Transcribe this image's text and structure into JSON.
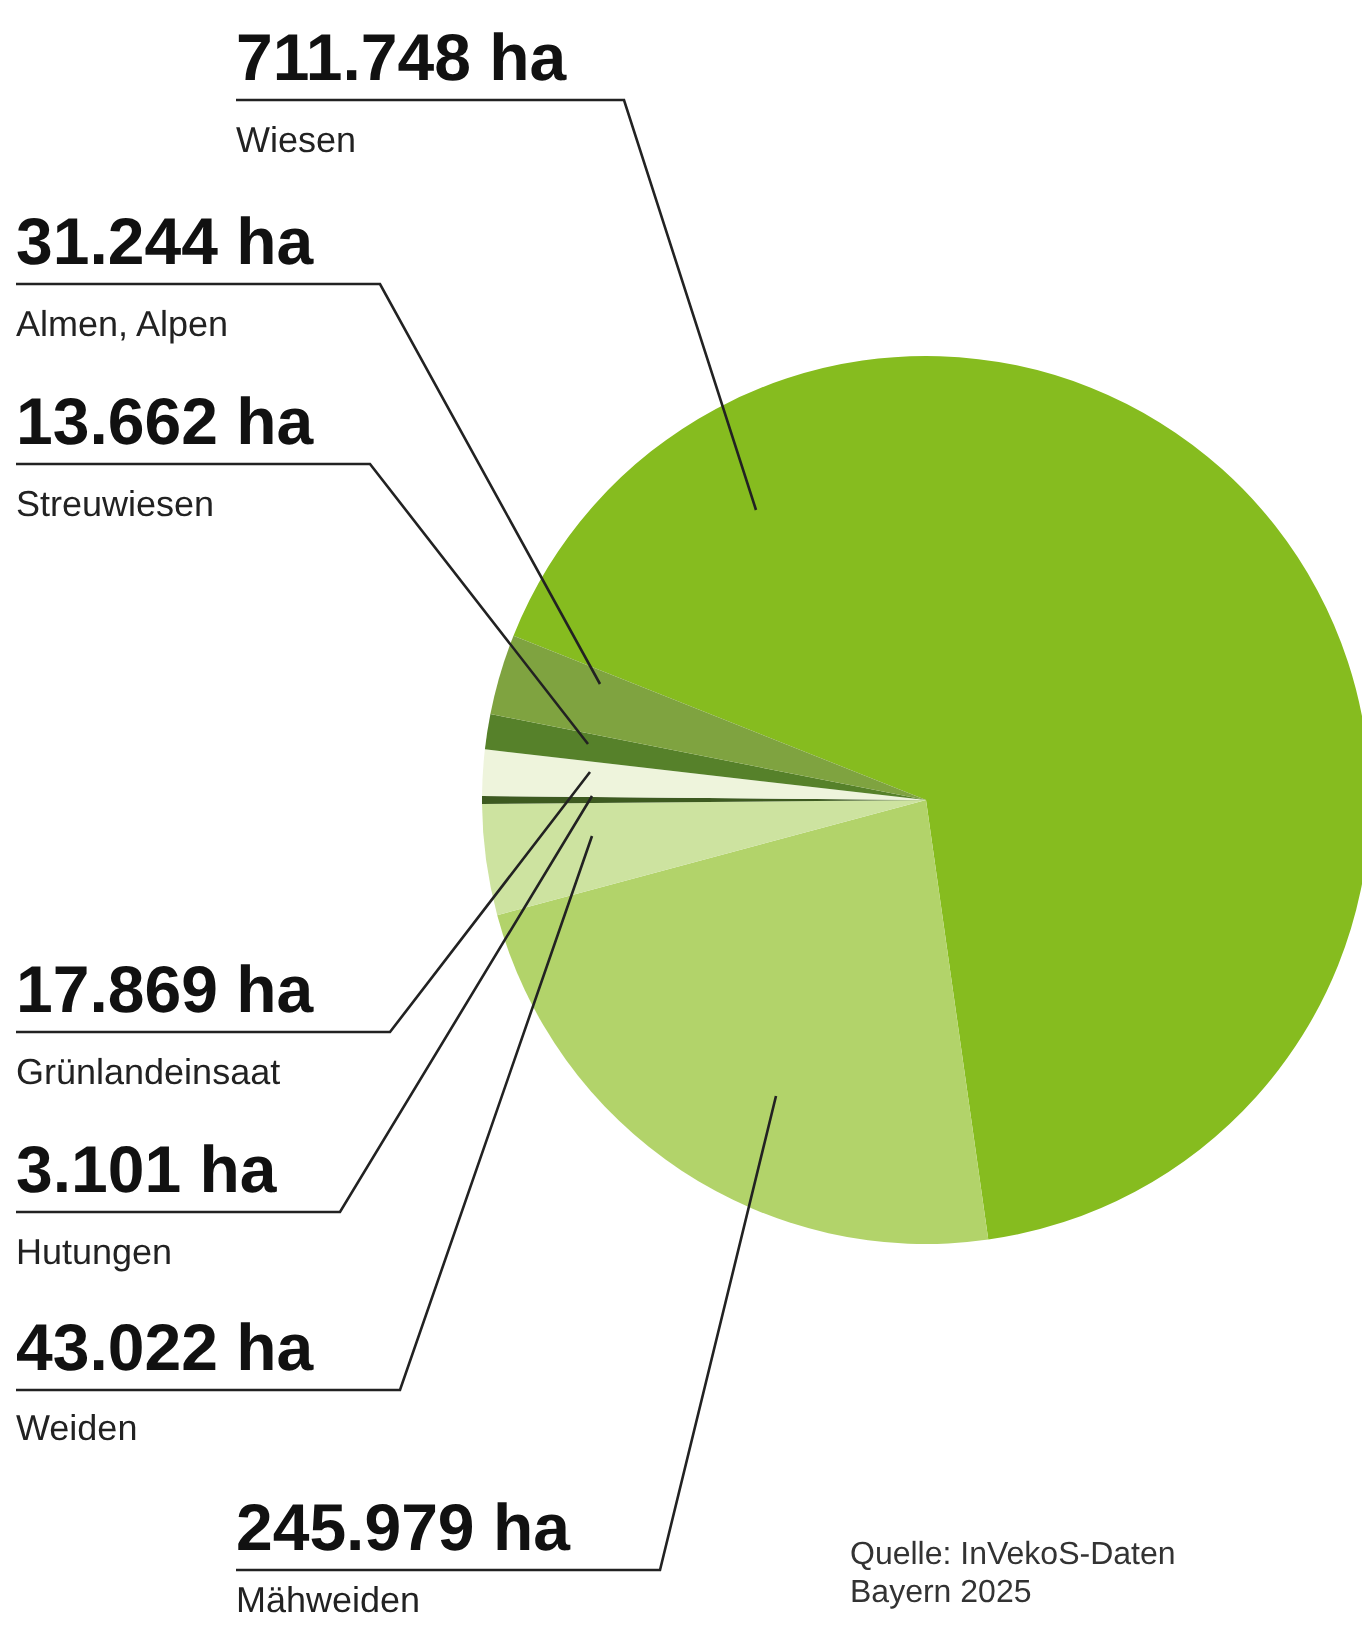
{
  "chart_data": {
    "type": "pie",
    "categories": [
      "Wiesen",
      "Mähweiden",
      "Weiden",
      "Hutungen",
      "Grünlandeinsaat",
      "Streuwiesen",
      "Almen, Alpen"
    ],
    "values": [
      711748,
      245979,
      43022,
      3101,
      17869,
      13662,
      31244
    ],
    "colors": [
      "#86bc1f",
      "#b2d36a",
      "#cde3a0",
      "#3d5a20",
      "#eef4dc",
      "#56812a",
      "#7fa340"
    ],
    "value_labels": [
      "711.748 ha",
      "245.979 ha",
      "43.022 ha",
      "3.101 ha",
      "17.869 ha",
      "13.662 ha",
      "31.244 ha"
    ],
    "annotations": [
      "Quelle: InVekoS-Daten Bayern 2025"
    ]
  }
}
